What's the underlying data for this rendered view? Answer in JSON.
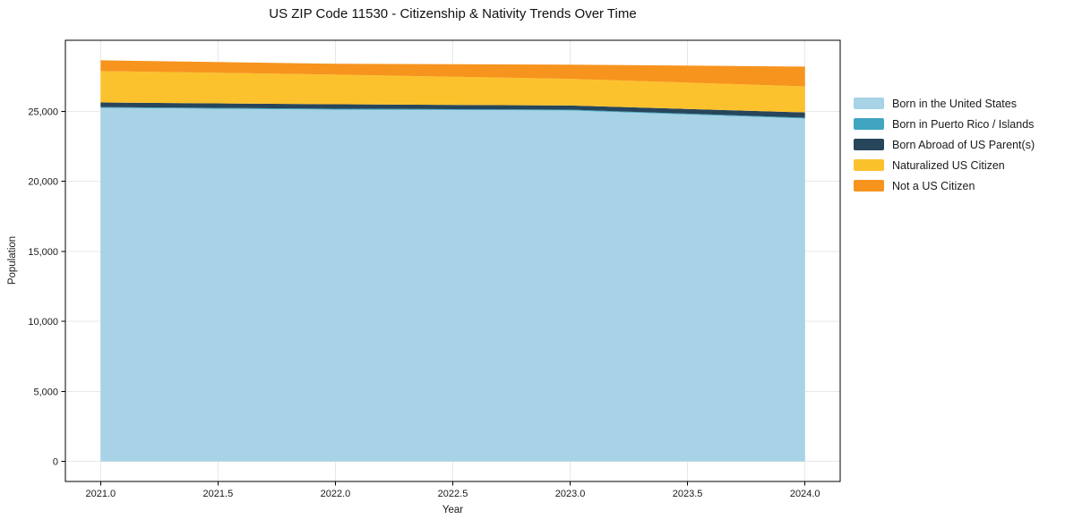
{
  "title": "US ZIP Code 11530 - Citizenship & Nativity Trends Over Time",
  "chart_data": {
    "type": "area",
    "stacked": true,
    "title": "US ZIP Code 11530 - Citizenship & Nativity Trends Over Time",
    "xlabel": "Year",
    "ylabel": "Population",
    "x": [
      2021,
      2022,
      2023,
      2024
    ],
    "series": [
      {
        "name": "Born in the United States",
        "color": "#a8d2e6",
        "values": [
          25250,
          25130,
          25070,
          24490
        ]
      },
      {
        "name": "Born in Puerto Rico / Islands",
        "color": "#3fa5c0",
        "values": [
          60,
          60,
          60,
          60
        ]
      },
      {
        "name": "Born Abroad of US Parent(s)",
        "color": "#27465b",
        "values": [
          330,
          320,
          290,
          380
        ]
      },
      {
        "name": "Naturalized US Citizen",
        "color": "#fcc22d",
        "values": [
          2240,
          2120,
          1900,
          1860
        ]
      },
      {
        "name": "Not a US Citizen",
        "color": "#f7941e",
        "values": [
          770,
          770,
          1020,
          1410
        ]
      }
    ],
    "xlim": [
      2020.85,
      2024.15
    ],
    "ylim": [
      -1430,
      30080
    ],
    "x_ticks": {
      "values": [
        2021.0,
        2021.5,
        2022.0,
        2022.5,
        2023.0,
        2023.5,
        2024.0
      ],
      "labels": [
        "2021.0",
        "2021.5",
        "2022.0",
        "2022.5",
        "2023.0",
        "2023.5",
        "2024.0"
      ]
    },
    "y_ticks": {
      "values": [
        0,
        5000,
        10000,
        15000,
        20000,
        25000
      ],
      "labels": [
        "0",
        "5,000",
        "10,000",
        "15,000",
        "20,000",
        "25,000"
      ]
    },
    "grid": true,
    "legend_position": "right-outside"
  },
  "colors": {
    "background": "#ffffff",
    "grid": "#e8e8e8",
    "spine": "#000000",
    "tick_text": "#1a1a1a"
  }
}
